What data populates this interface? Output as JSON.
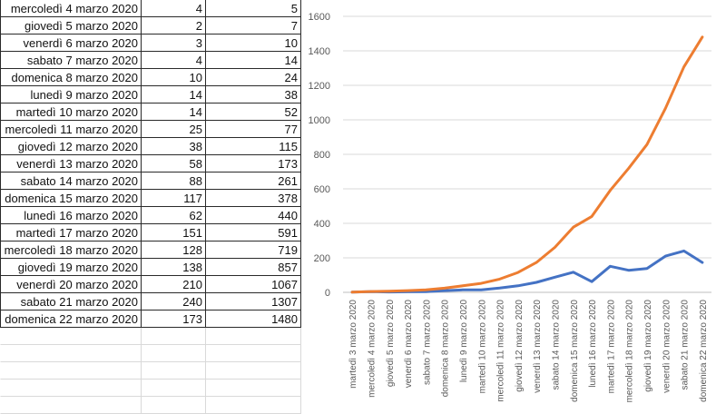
{
  "table": {
    "rows": [
      [
        "mercoledì 4 marzo 2020",
        "4",
        "5"
      ],
      [
        "giovedì 5 marzo 2020",
        "2",
        "7"
      ],
      [
        "venerdì 6 marzo 2020",
        "3",
        "10"
      ],
      [
        "sabato 7 marzo 2020",
        "4",
        "14"
      ],
      [
        "domenica 8 marzo 2020",
        "10",
        "24"
      ],
      [
        "lunedì 9 marzo 2020",
        "14",
        "38"
      ],
      [
        "martedì 10 marzo 2020",
        "14",
        "52"
      ],
      [
        "mercoledì 11 marzo 2020",
        "25",
        "77"
      ],
      [
        "giovedì 12 marzo 2020",
        "38",
        "115"
      ],
      [
        "venerdì 13 marzo 2020",
        "58",
        "173"
      ],
      [
        "sabato 14 marzo 2020",
        "88",
        "261"
      ],
      [
        "domenica 15 marzo 2020",
        "117",
        "378"
      ],
      [
        "lunedì 16 marzo 2020",
        "62",
        "440"
      ],
      [
        "martedì 17 marzo 2020",
        "151",
        "591"
      ],
      [
        "mercoledì 18 marzo 2020",
        "128",
        "719"
      ],
      [
        "giovedì 19 marzo 2020",
        "138",
        "857"
      ],
      [
        "venerdì 20 marzo 2020",
        "210",
        "1067"
      ],
      [
        "sabato 21 marzo 2020",
        "240",
        "1307"
      ],
      [
        "domenica 22 marzo 2020",
        "173",
        "1480"
      ]
    ]
  },
  "chart_data": {
    "type": "line",
    "title": "",
    "xlabel": "",
    "ylabel": "",
    "ylim": [
      0,
      1600
    ],
    "yticks": [
      0,
      200,
      400,
      600,
      800,
      1000,
      1200,
      1400,
      1600
    ],
    "grid": true,
    "legend": "none",
    "categories": [
      "martedì 3 marzo 2020",
      "mercoledì 4 marzo 2020",
      "giovedì 5 marzo 2020",
      "venerdì 6 marzo 2020",
      "sabato 7 marzo 2020",
      "domenica 8 marzo 2020",
      "lunedì 9 marzo 2020",
      "martedì 10 marzo 2020",
      "mercoledì 11 marzo 2020",
      "giovedì 12 marzo 2020",
      "venerdì 13 marzo 2020",
      "sabato 14 marzo 2020",
      "domenica 15 marzo 2020",
      "lunedì 16 marzo 2020",
      "martedì 17 marzo 2020",
      "mercoledì 18 marzo 2020",
      "giovedì 19 marzo 2020",
      "venerdì 20 marzo 2020",
      "sabato 21 marzo 2020",
      "domenica 22 marzo 2020"
    ],
    "series": [
      {
        "color": "#4472c4",
        "values": [
          1,
          4,
          2,
          3,
          4,
          10,
          14,
          14,
          25,
          38,
          58,
          88,
          117,
          62,
          151,
          128,
          138,
          210,
          240,
          173
        ]
      },
      {
        "color": "#ed7d31",
        "values": [
          1,
          5,
          7,
          10,
          14,
          24,
          38,
          52,
          77,
          115,
          173,
          261,
          378,
          440,
          591,
          719,
          857,
          1067,
          1307,
          1480
        ]
      }
    ]
  }
}
